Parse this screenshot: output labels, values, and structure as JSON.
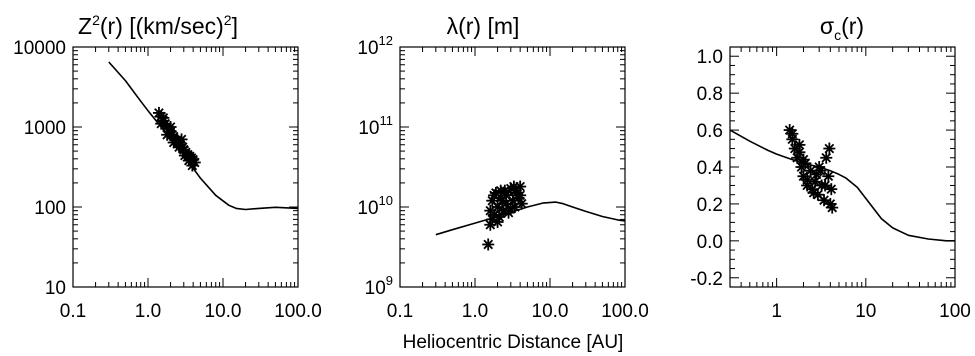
{
  "xlabel": "Heliocentric Distance [AU]",
  "chart_data": [
    {
      "type": "line",
      "title_main": "Z",
      "title_sup": "2",
      "title_mid": "(r) [(km/sec)",
      "title_sup2": "2",
      "title_end": "]",
      "xscale": "log",
      "yscale": "log",
      "xlim": [
        0.1,
        100
      ],
      "ylim": [
        10,
        10000
      ],
      "xticks": [
        "0.1",
        "1.0",
        "10.0",
        "100.0"
      ],
      "yticks": [
        "10",
        "100",
        "1000",
        "10000"
      ],
      "ytick_values": [
        10,
        100,
        1000,
        10000
      ],
      "xtick_values": [
        0.1,
        1,
        10,
        100
      ],
      "series": [
        {
          "kind": "line",
          "x": [
            0.3,
            0.5,
            0.8,
            1.0,
            1.5,
            2.0,
            3.0,
            5.0,
            8.0,
            12.0,
            15.0,
            20.0,
            30.0,
            50.0,
            80.0,
            100.0
          ],
          "y": [
            6500,
            3800,
            2100,
            1600,
            1000,
            720,
            440,
            230,
            140,
            105,
            96,
            93,
            96,
            99,
            97,
            96
          ]
        },
        {
          "kind": "scatter",
          "marker": "asterisk",
          "x": [
            1.4,
            1.5,
            1.6,
            1.7,
            1.8,
            1.9,
            2.0,
            2.1,
            2.2,
            2.4,
            2.5,
            2.7,
            2.9,
            3.0,
            3.2,
            3.4,
            3.6,
            3.8,
            4.0,
            4.2,
            1.5,
            1.8,
            2.2,
            2.6,
            3.1,
            3.5,
            3.9,
            1.6,
            2.0,
            2.8
          ],
          "y": [
            1500,
            1350,
            1200,
            1100,
            1000,
            950,
            880,
            800,
            760,
            680,
            640,
            600,
            560,
            520,
            480,
            450,
            430,
            410,
            390,
            360,
            1100,
            800,
            640,
            560,
            440,
            380,
            330,
            1300,
            1000,
            700
          ]
        }
      ]
    },
    {
      "type": "line",
      "title_main": "λ(r) [m]",
      "xscale": "log",
      "yscale": "log",
      "xlim": [
        0.1,
        100
      ],
      "ylim": [
        1000000000.0,
        1000000000000.0
      ],
      "xticks": [
        "0.1",
        "1.0",
        "10.0",
        "100.0"
      ],
      "xtick_values": [
        0.1,
        1,
        10,
        100
      ],
      "yticks_base": [
        "10",
        "10",
        "10",
        "10"
      ],
      "yticks_exp": [
        "9",
        "10",
        "11",
        "12"
      ],
      "ytick_values": [
        1000000000.0,
        10000000000.0,
        100000000000.0,
        1000000000000.0
      ],
      "series": [
        {
          "kind": "line",
          "x": [
            0.3,
            0.5,
            1.0,
            2.0,
            3.0,
            5.0,
            8.0,
            12.0,
            15.0,
            20.0,
            30.0,
            50.0,
            80.0,
            100.0
          ],
          "y": [
            4500000000.0,
            5200000000.0,
            6300000000.0,
            7600000000.0,
            8600000000.0,
            10000000000.0,
            11200000000.0,
            11500000000.0,
            11000000000.0,
            10000000000.0,
            8800000000.0,
            7600000000.0,
            6900000000.0,
            6700000000.0
          ]
        },
        {
          "kind": "scatter",
          "marker": "asterisk",
          "x": [
            1.5,
            1.6,
            1.7,
            1.8,
            1.9,
            2.0,
            2.1,
            2.2,
            2.4,
            2.5,
            2.6,
            2.8,
            3.0,
            3.2,
            3.4,
            3.6,
            3.8,
            4.0,
            4.2,
            1.6,
            1.8,
            2.0,
            2.3,
            2.6,
            3.0,
            3.5,
            4.0,
            1.7,
            2.2,
            3.3
          ],
          "y": [
            3400000000.0,
            6000000000.0,
            12000000000.0,
            8000000000.0,
            15000000000.0,
            10000000000.0,
            7500000000.0,
            13000000000.0,
            9000000000.0,
            16000000000.0,
            11000000000.0,
            8500000000.0,
            17000000000.0,
            12000000000.0,
            10000000000.0,
            15000000000.0,
            13000000000.0,
            18000000000.0,
            11000000000.0,
            9000000000.0,
            14000000000.0,
            6500000000.0,
            12000000000.0,
            14000000000.0,
            9500000000.0,
            16000000000.0,
            14000000000.0,
            7000000000.0,
            16000000000.0,
            18000000000.0
          ]
        }
      ]
    },
    {
      "type": "line",
      "title_main": "σ",
      "title_sub": "c",
      "title_end": "(r)",
      "xscale": "log",
      "yscale": "linear",
      "xlim": [
        0.3,
        100
      ],
      "ylim": [
        -0.25,
        1.05
      ],
      "xticks": [
        "1",
        "10",
        "100"
      ],
      "xtick_values": [
        1,
        10,
        100
      ],
      "yticks": [
        "-0.2",
        "0.0",
        "0.2",
        "0.4",
        "0.6",
        "0.8",
        "1.0"
      ],
      "ytick_values": [
        -0.2,
        0.0,
        0.2,
        0.4,
        0.6,
        0.8,
        1.0
      ],
      "series": [
        {
          "kind": "line",
          "x": [
            0.3,
            0.5,
            0.8,
            1.0,
            1.5,
            2.0,
            3.0,
            4.0,
            5.0,
            6.0,
            8.0,
            10.0,
            12.0,
            15.0,
            20.0,
            30.0,
            50.0,
            80.0,
            100.0
          ],
          "y": [
            0.6,
            0.54,
            0.49,
            0.47,
            0.44,
            0.42,
            0.4,
            0.38,
            0.36,
            0.34,
            0.29,
            0.23,
            0.18,
            0.12,
            0.07,
            0.03,
            0.01,
            0.0,
            0.0
          ]
        },
        {
          "kind": "scatter",
          "marker": "asterisk",
          "x": [
            1.4,
            1.5,
            1.6,
            1.7,
            1.8,
            1.9,
            2.0,
            2.1,
            2.2,
            2.4,
            2.5,
            2.7,
            2.9,
            3.0,
            3.2,
            3.4,
            3.6,
            3.8,
            4.0,
            4.2,
            1.5,
            1.8,
            2.2,
            2.6,
            3.1,
            3.5,
            3.9,
            4.1,
            2.0,
            2.8
          ],
          "y": [
            0.6,
            0.55,
            0.5,
            0.45,
            0.52,
            0.4,
            0.35,
            0.42,
            0.3,
            0.38,
            0.28,
            0.32,
            0.25,
            0.4,
            0.3,
            0.22,
            0.45,
            0.35,
            0.2,
            0.18,
            0.58,
            0.48,
            0.33,
            0.26,
            0.38,
            0.3,
            0.5,
            0.28,
            0.44,
            0.36
          ]
        }
      ]
    }
  ]
}
